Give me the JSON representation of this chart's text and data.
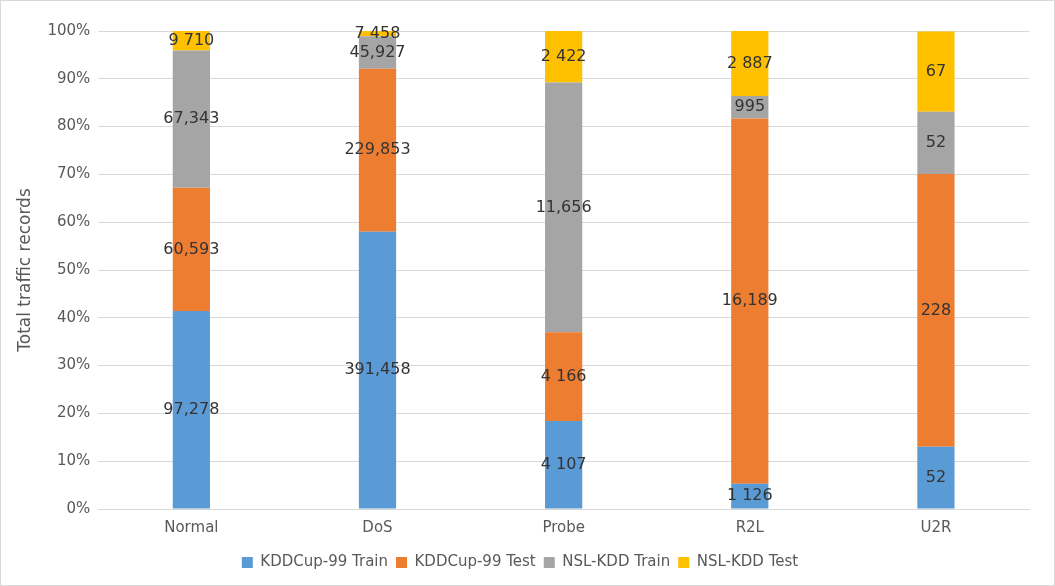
{
  "chart_data": {
    "type": "bar",
    "stacked": true,
    "ylabel": "Total traffic records",
    "categories": [
      "Normal",
      "DoS",
      "Probe",
      "R2L",
      "U2R"
    ],
    "series": [
      {
        "name": "KDDCup-99 Train",
        "color": "#5b9bd5",
        "values": [
          41.4,
          58.0,
          18.4,
          5.3,
          13.0
        ]
      },
      {
        "name": "KDDCup-99 Test",
        "color": "#ed7d31",
        "values": [
          25.8,
          34.1,
          18.6,
          76.4,
          57.1
        ]
      },
      {
        "name": "NSL-KDD Train",
        "color": "#a5a5a5",
        "values": [
          28.7,
          6.8,
          52.2,
          4.7,
          13.0
        ]
      },
      {
        "name": "NSL-KDD Test",
        "color": "#ffc000",
        "values": [
          4.1,
          1.1,
          10.8,
          13.6,
          16.8
        ]
      }
    ],
    "annotations": [
      "97,278",
      "60,593",
      "67,343",
      "9 710",
      "391,458",
      "229,853",
      "45,927",
      "7 458",
      "4 107",
      "4 166",
      "11,656",
      "2 422",
      "1 126",
      "16,189",
      "995",
      "2 887",
      "52",
      "228",
      "52",
      "67"
    ],
    "ylim": [
      0,
      100
    ],
    "yticks": [
      {
        "value": 0,
        "label": "0%"
      },
      {
        "value": 10,
        "label": "10%"
      },
      {
        "value": 20,
        "label": "20%"
      },
      {
        "value": 30,
        "label": "30%"
      },
      {
        "value": 40,
        "label": "40%"
      },
      {
        "value": 50,
        "label": "50%"
      },
      {
        "value": 60,
        "label": "60%"
      },
      {
        "value": 70,
        "label": "70%"
      },
      {
        "value": 80,
        "label": "80%"
      },
      {
        "value": 90,
        "label": "90%"
      },
      {
        "value": 100,
        "label": "100%"
      }
    ],
    "grid": "y",
    "legend": "bottom"
  }
}
